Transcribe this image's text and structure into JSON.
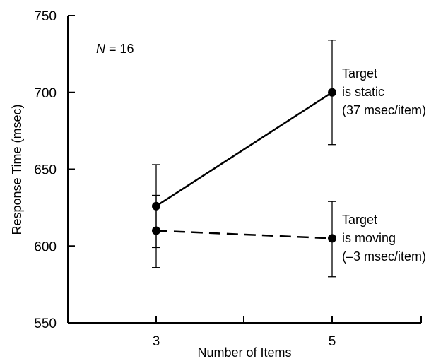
{
  "chart_data": {
    "type": "line",
    "xlabel": "Number of Items",
    "ylabel": "Response Time (msec)",
    "x_categories": [
      "3",
      "5"
    ],
    "x": [
      3,
      5
    ],
    "ylim": [
      550,
      750
    ],
    "yticks": [
      "550",
      "600",
      "650",
      "700",
      "750"
    ],
    "grid": false,
    "series": [
      {
        "name": "Target is static",
        "line_style": "solid",
        "values": [
          626,
          700
        ],
        "error_low": [
          599,
          666
        ],
        "error_high": [
          653,
          734
        ],
        "label_lines": [
          "Target",
          "is static",
          "(37 msec/item)"
        ]
      },
      {
        "name": "Target is moving",
        "line_style": "dashed",
        "values": [
          610,
          605
        ],
        "error_low": [
          586,
          580
        ],
        "error_high": [
          633,
          629
        ],
        "label_lines": [
          "Target",
          "is moving",
          "(–3 msec/item)"
        ]
      }
    ],
    "annotation": {
      "italic": "N",
      "rest": " = 16"
    },
    "colors": {
      "line": "#000000",
      "marker": "#000000"
    }
  }
}
